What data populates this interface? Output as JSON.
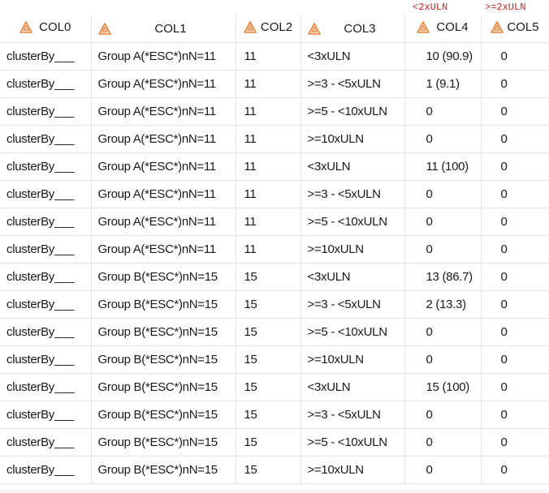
{
  "top_labels": [
    "<2xULN",
    ">=2xULN"
  ],
  "columns": [
    "COL0",
    "COL1",
    "COL2",
    "COL3",
    "COL4",
    "COL5"
  ],
  "rows": [
    [
      "clusterBy___",
      "Group A(*ESC*)nN=11",
      "11",
      "<3xULN",
      "10 (90.9)",
      "0"
    ],
    [
      "clusterBy___",
      "Group A(*ESC*)nN=11",
      "11",
      ">=3 - <5xULN",
      "1  (9.1)",
      "0"
    ],
    [
      "clusterBy___",
      "Group A(*ESC*)nN=11",
      "11",
      ">=5 - <10xULN",
      "0",
      "0"
    ],
    [
      "clusterBy___",
      "Group A(*ESC*)nN=11",
      "11",
      ">=10xULN",
      "0",
      "0"
    ],
    [
      "clusterBy___",
      "Group A(*ESC*)nN=11",
      "11",
      "<3xULN",
      "11  (100)",
      "0"
    ],
    [
      "clusterBy___",
      "Group A(*ESC*)nN=11",
      "11",
      ">=3 - <5xULN",
      "0",
      "0"
    ],
    [
      "clusterBy___",
      "Group A(*ESC*)nN=11",
      "11",
      ">=5 - <10xULN",
      "0",
      "0"
    ],
    [
      "clusterBy___",
      "Group A(*ESC*)nN=11",
      "11",
      ">=10xULN",
      "0",
      "0"
    ],
    [
      "clusterBy___",
      "Group B(*ESC*)nN=15",
      "15",
      "<3xULN",
      "13 (86.7)",
      "0"
    ],
    [
      "clusterBy___",
      "Group B(*ESC*)nN=15",
      "15",
      ">=3 - <5xULN",
      "2 (13.3)",
      "0"
    ],
    [
      "clusterBy___",
      "Group B(*ESC*)nN=15",
      "15",
      ">=5 - <10xULN",
      "0",
      "0"
    ],
    [
      "clusterBy___",
      "Group B(*ESC*)nN=15",
      "15",
      ">=10xULN",
      "0",
      "0"
    ],
    [
      "clusterBy___",
      "Group B(*ESC*)nN=15",
      "15",
      "<3xULN",
      "15  (100)",
      "0"
    ],
    [
      "clusterBy___",
      "Group B(*ESC*)nN=15",
      "15",
      ">=3 - <5xULN",
      "0",
      "0"
    ],
    [
      "clusterBy___",
      "Group B(*ESC*)nN=15",
      "15",
      ">=5 - <10xULN",
      "0",
      "0"
    ],
    [
      "clusterBy___",
      "Group B(*ESC*)nN=15",
      "15",
      ">=10xULN",
      "0",
      "0"
    ]
  ],
  "header_icon": "warning-triangle-icon",
  "colors": {
    "icon_orange": "#e8843c",
    "top_label_red": "#d02020",
    "grid_line": "#e4e7ea"
  }
}
